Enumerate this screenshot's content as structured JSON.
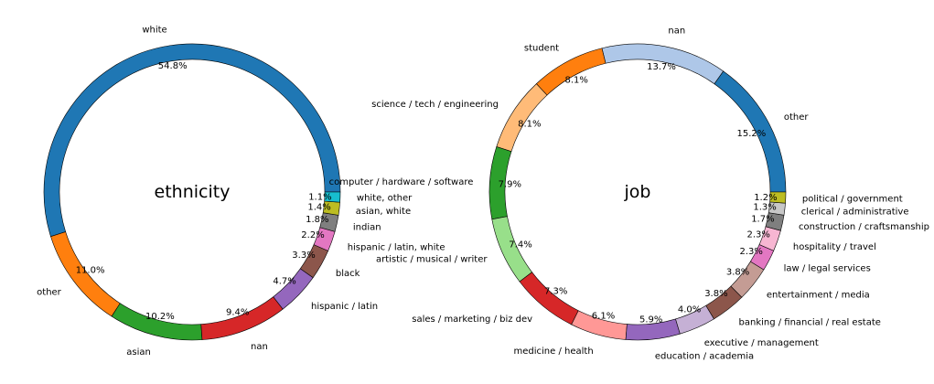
{
  "chart_data": [
    {
      "type": "pie",
      "title": "ethnicity",
      "slices": [
        {
          "label": "white",
          "value": 54.8,
          "pct_label": "54.8%",
          "color": "#1f77b4"
        },
        {
          "label": "other",
          "value": 11.0,
          "pct_label": "11.0%",
          "color": "#ff7f0e"
        },
        {
          "label": "asian",
          "value": 10.2,
          "pct_label": "10.2%",
          "color": "#2ca02c"
        },
        {
          "label": "nan",
          "value": 9.4,
          "pct_label": "9.4%",
          "color": "#d62728"
        },
        {
          "label": "hispanic / latin",
          "value": 4.7,
          "pct_label": "4.7%",
          "color": "#9467bd"
        },
        {
          "label": "black",
          "value": 3.3,
          "pct_label": "3.3%",
          "color": "#8c564b"
        },
        {
          "label": "hispanic / latin, white",
          "value": 2.2,
          "pct_label": "2.2%",
          "color": "#e377c2"
        },
        {
          "label": "indian",
          "value": 1.8,
          "pct_label": "1.8%",
          "color": "#7f7f7f"
        },
        {
          "label": "asian, white",
          "value": 1.4,
          "pct_label": "1.4%",
          "color": "#bcbd22"
        },
        {
          "label": "white, other",
          "value": 1.1,
          "pct_label": "1.1%",
          "color": "#17becf"
        }
      ]
    },
    {
      "type": "pie",
      "title": "job",
      "slices": [
        {
          "label": "other",
          "value": 15.2,
          "pct_label": "15.2%",
          "color": "#1f77b4"
        },
        {
          "label": "nan",
          "value": 13.7,
          "pct_label": "13.7%",
          "color": "#aec7e8"
        },
        {
          "label": "student",
          "value": 8.1,
          "pct_label": "8.1%",
          "color": "#ff7f0e"
        },
        {
          "label": "science / tech / engineering",
          "value": 8.1,
          "pct_label": "8.1%",
          "color": "#ffbb78"
        },
        {
          "label": "computer / hardware / software",
          "value": 7.9,
          "pct_label": "7.9%",
          "color": "#2ca02c"
        },
        {
          "label": "artistic / musical / writer",
          "value": 7.4,
          "pct_label": "7.4%",
          "color": "#98df8a"
        },
        {
          "label": "sales / marketing / biz dev",
          "value": 7.3,
          "pct_label": "7.3%",
          "color": "#d62728"
        },
        {
          "label": "medicine / health",
          "value": 6.1,
          "pct_label": "6.1%",
          "color": "#ff9896"
        },
        {
          "label": "education / academia",
          "value": 5.9,
          "pct_label": "5.9%",
          "color": "#9467bd"
        },
        {
          "label": "executive / management",
          "value": 4.0,
          "pct_label": "4.0%",
          "color": "#c5b0d5"
        },
        {
          "label": "banking / financial / real estate",
          "value": 3.8,
          "pct_label": "3.8%",
          "color": "#8c564b"
        },
        {
          "label": "entertainment / media",
          "value": 3.8,
          "pct_label": "3.8%",
          "color": "#c49c94"
        },
        {
          "label": "law / legal services",
          "value": 2.3,
          "pct_label": "2.3%",
          "color": "#e377c2"
        },
        {
          "label": "hospitality / travel",
          "value": 2.3,
          "pct_label": "2.3%",
          "color": "#f7b6d2"
        },
        {
          "label": "construction / craftsmanship",
          "value": 1.7,
          "pct_label": "1.7%",
          "color": "#7f7f7f"
        },
        {
          "label": "clerical / administrative",
          "value": 1.3,
          "pct_label": "1.3%",
          "color": "#c7c7c7"
        },
        {
          "label": "political / government",
          "value": 1.2,
          "pct_label": "1.2%",
          "color": "#bcbd22"
        }
      ]
    }
  ]
}
